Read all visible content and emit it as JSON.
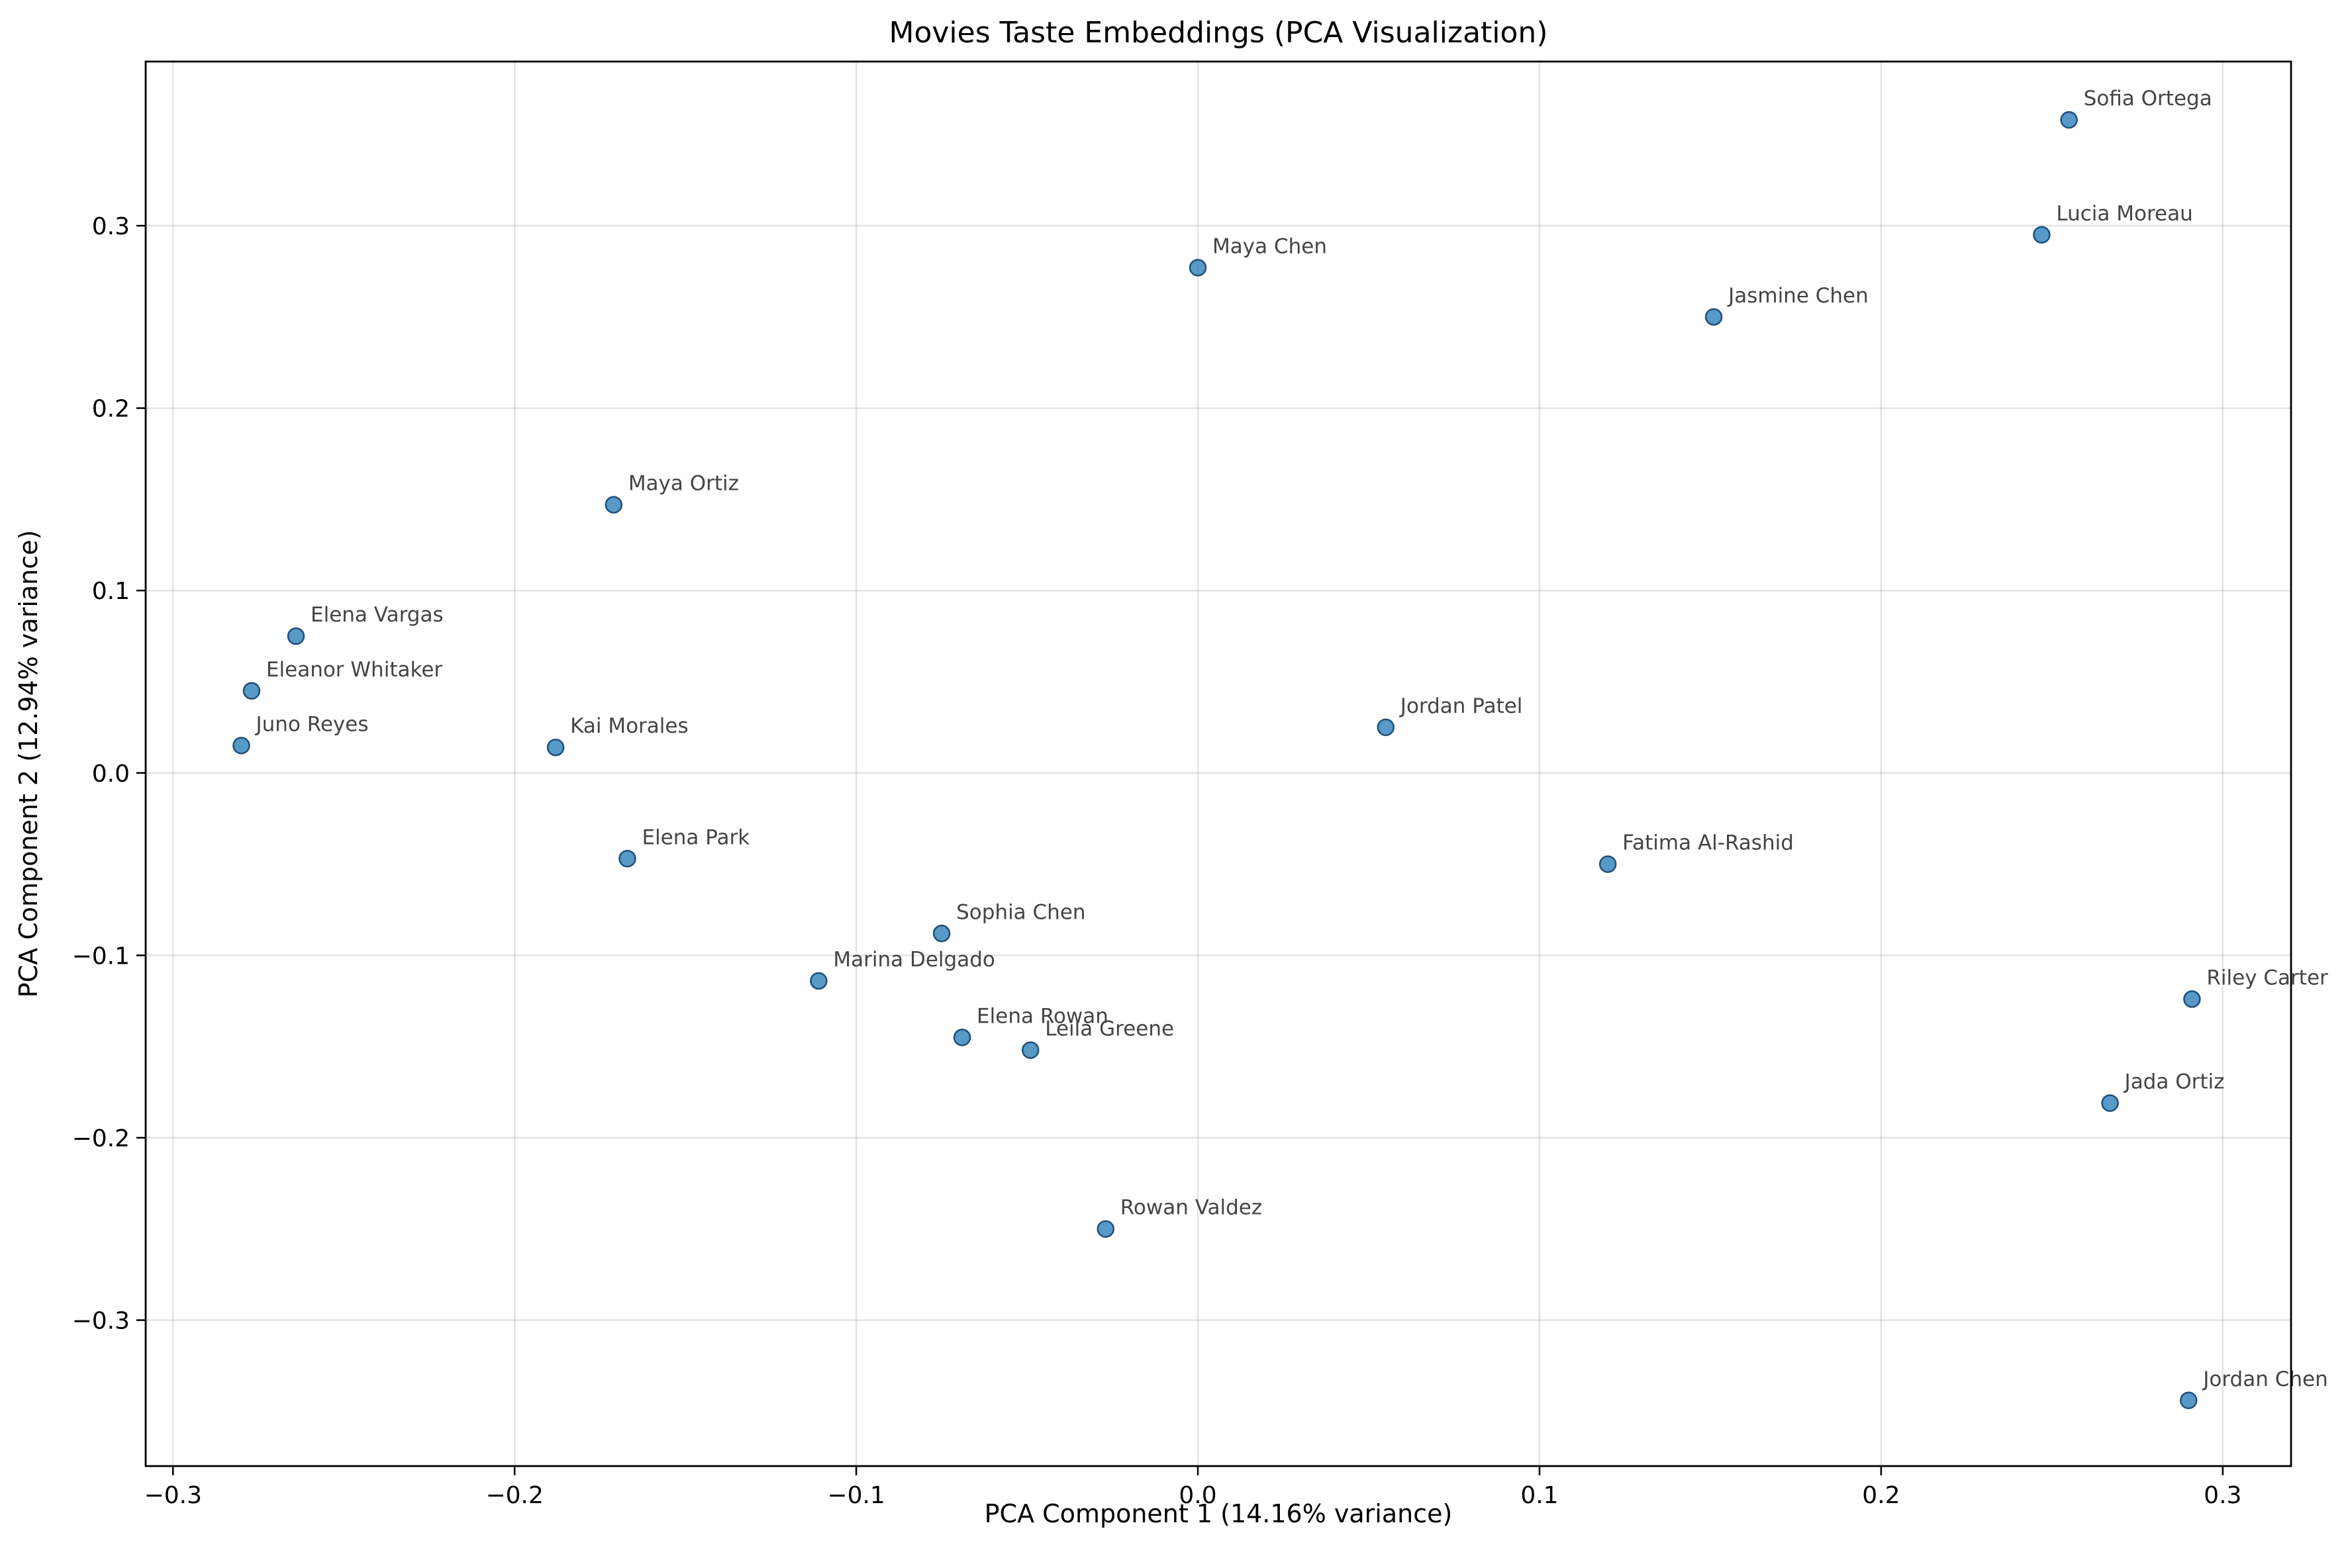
{
  "chart_data": {
    "type": "scatter",
    "title": "Movies Taste Embeddings (PCA Visualization)",
    "xlabel": "PCA Component 1 (14.16% variance)",
    "ylabel": "PCA Component 2 (12.94% variance)",
    "xlim": [
      -0.308,
      0.32
    ],
    "ylim": [
      -0.38,
      0.39
    ],
    "xticks": [
      -0.3,
      -0.2,
      -0.1,
      0.0,
      0.1,
      0.2,
      0.3
    ],
    "xtick_labels": [
      "−0.3",
      "−0.2",
      "−0.1",
      "0.0",
      "0.1",
      "0.2",
      "0.3"
    ],
    "yticks": [
      -0.3,
      -0.2,
      -0.1,
      0.0,
      0.1,
      0.2,
      0.3
    ],
    "ytick_labels": [
      "−0.3",
      "−0.2",
      "−0.1",
      "0.0",
      "0.1",
      "0.2",
      "0.3"
    ],
    "grid": true,
    "point_color": "#1f77b4",
    "points": [
      {
        "label": "Sofia Ortega",
        "x": 0.255,
        "y": 0.358
      },
      {
        "label": "Lucia Moreau",
        "x": 0.247,
        "y": 0.295
      },
      {
        "label": "Maya Chen",
        "x": 0.0,
        "y": 0.277
      },
      {
        "label": "Jasmine Chen",
        "x": 0.151,
        "y": 0.25
      },
      {
        "label": "Maya Ortiz",
        "x": -0.171,
        "y": 0.147
      },
      {
        "label": "Elena Vargas",
        "x": -0.264,
        "y": 0.075
      },
      {
        "label": "Eleanor Whitaker",
        "x": -0.277,
        "y": 0.045
      },
      {
        "label": "Juno Reyes",
        "x": -0.28,
        "y": 0.015
      },
      {
        "label": "Kai Morales",
        "x": -0.188,
        "y": 0.014
      },
      {
        "label": "Jordan Patel",
        "x": 0.055,
        "y": 0.025
      },
      {
        "label": "Elena Park",
        "x": -0.167,
        "y": -0.047
      },
      {
        "label": "Fatima Al-Rashid",
        "x": 0.12,
        "y": -0.05
      },
      {
        "label": "Sophia Chen",
        "x": -0.075,
        "y": -0.088
      },
      {
        "label": "Marina Delgado",
        "x": -0.111,
        "y": -0.114
      },
      {
        "label": "Elena Rowan",
        "x": -0.069,
        "y": -0.145
      },
      {
        "label": "Leila Greene",
        "x": -0.049,
        "y": -0.152
      },
      {
        "label": "Riley Carter",
        "x": 0.291,
        "y": -0.124
      },
      {
        "label": "Jada Ortiz",
        "x": 0.267,
        "y": -0.181
      },
      {
        "label": "Rowan Valdez",
        "x": -0.027,
        "y": -0.25
      },
      {
        "label": "Jordan Chen",
        "x": 0.29,
        "y": -0.344
      }
    ]
  }
}
